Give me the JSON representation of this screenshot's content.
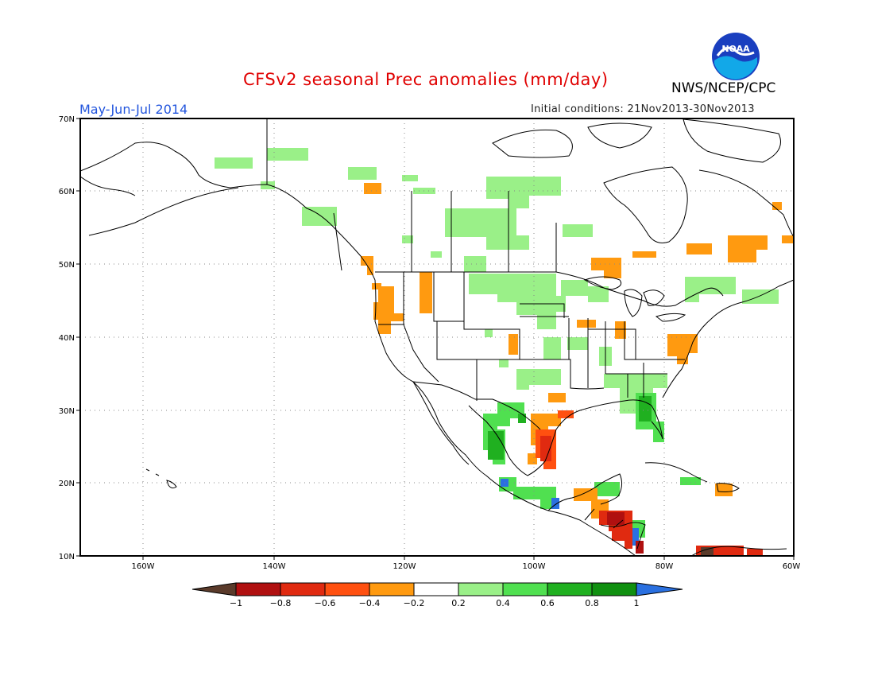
{
  "title": "CFSv2 seasonal Prec anomalies (mm/day)",
  "organization": "NWS/NCEP/CPC",
  "logo_text": "NOAA",
  "valid_period": "May-Jun-Jul 2014",
  "initial_conditions": "Initial conditions: 21Nov2013-30Nov2013",
  "lat_labels": [
    "70N",
    "60N",
    "50N",
    "40N",
    "30N",
    "20N",
    "10N"
  ],
  "lon_labels": [
    "160W",
    "140W",
    "120W",
    "100W",
    "80W",
    "60W"
  ],
  "legend": {
    "labels": [
      "-1",
      "-0.8",
      "-0.6",
      "-0.4",
      "-0.2",
      "0.2",
      "0.4",
      "0.6",
      "0.8",
      "1"
    ],
    "colors": [
      "#5a3a2a",
      "#b01010",
      "#e02a10",
      "#ff5010",
      "#ff9a10",
      "#ffffff",
      "#9af088",
      "#50e050",
      "#20b020",
      "#109010",
      "#2a70e0"
    ]
  },
  "anomaly_regions": [
    {
      "region": "Pacific Northwest coast",
      "value": -0.3
    },
    {
      "region": "Idaho",
      "value": -0.3
    },
    {
      "region": "Southern Alaska coast",
      "value": 0.3
    },
    {
      "region": "Western Canada",
      "value": 0.3
    },
    {
      "region": "Northern Plains",
      "value": 0.3
    },
    {
      "region": "Mid-Atlantic",
      "value": -0.3
    },
    {
      "region": "Florida",
      "value": 0.5
    },
    {
      "region": "Texas Gulf coast",
      "value": -0.5
    },
    {
      "region": "Northeast Mexico",
      "value": -0.7
    },
    {
      "region": "Central America",
      "value": -0.8
    },
    {
      "region": "Western Mexico",
      "value": 0.5
    },
    {
      "region": "Hudson Bay east",
      "value": -0.3
    },
    {
      "region": "Caribbean",
      "value": -0.5
    },
    {
      "region": "Northern South America",
      "value": -0.8
    }
  ]
}
